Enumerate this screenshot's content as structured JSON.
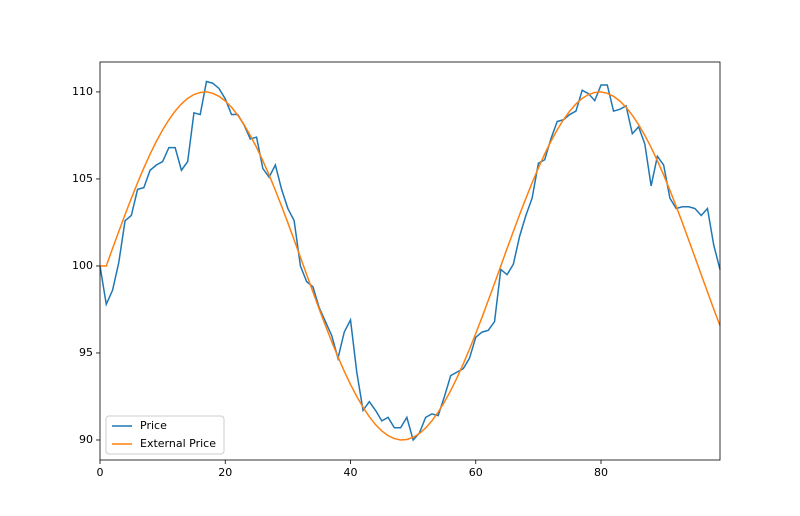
{
  "chart_data": {
    "type": "line",
    "x": [
      0,
      1,
      2,
      3,
      4,
      5,
      6,
      7,
      8,
      9,
      10,
      11,
      12,
      13,
      14,
      15,
      16,
      17,
      18,
      19,
      20,
      21,
      22,
      23,
      24,
      25,
      26,
      27,
      28,
      29,
      30,
      31,
      32,
      33,
      34,
      35,
      36,
      37,
      38,
      39,
      40,
      41,
      42,
      43,
      44,
      45,
      46,
      47,
      48,
      49,
      50,
      51,
      52,
      53,
      54,
      55,
      56,
      57,
      58,
      59,
      60,
      61,
      62,
      63,
      64,
      65,
      66,
      67,
      68,
      69,
      70,
      71,
      72,
      73,
      74,
      75,
      76,
      77,
      78,
      79,
      80,
      81,
      82,
      83,
      84,
      85,
      86,
      87,
      88,
      89,
      90,
      91,
      92,
      93,
      94,
      95,
      96,
      97,
      98,
      99
    ],
    "series": [
      {
        "name": "Price",
        "color": "#1f77b4",
        "values": [
          100,
          97.8,
          98.6,
          100.2,
          102.6,
          102.9,
          104.4,
          104.5,
          105.5,
          105.8,
          106.0,
          106.8,
          106.8,
          105.5,
          106.0,
          108.8,
          108.7,
          110.6,
          110.5,
          110.2,
          109.6,
          108.7,
          108.7,
          108.1,
          107.3,
          107.4,
          105.6,
          105.1,
          105.8,
          104.4,
          103.3,
          102.6,
          100.0,
          99.1,
          98.8,
          97.6,
          96.8,
          96.0,
          94.7,
          96.2,
          96.9,
          93.9,
          91.7,
          92.2,
          91.7,
          91.1,
          91.3,
          90.7,
          90.7,
          91.3,
          90.0,
          90.4,
          91.3,
          91.5,
          91.4,
          92.5,
          93.7,
          93.9,
          94.1,
          94.7,
          95.9,
          96.2,
          96.3,
          96.8,
          99.8,
          99.5,
          100.1,
          101.7,
          102.9,
          103.9,
          105.9,
          106.1,
          107.3,
          108.3,
          108.4,
          108.7,
          108.9,
          110.1,
          109.9,
          109.5,
          110.4,
          110.4,
          108.9,
          109.0,
          109.2,
          107.6,
          108.0,
          107.0,
          104.6,
          106.3,
          105.8,
          103.9,
          103.3,
          103.4,
          103.4,
          103.3,
          102.9,
          103.3,
          101.2,
          99.8
        ]
      },
      {
        "name": "External Price",
        "color": "#ff7f0e",
        "values": [
          100,
          100,
          101.0,
          101.98,
          102.95,
          103.88,
          104.78,
          105.63,
          106.43,
          107.16,
          107.82,
          108.4,
          108.9,
          109.31,
          109.63,
          109.85,
          109.97,
          110.0,
          109.92,
          109.75,
          109.48,
          109.12,
          108.66,
          108.12,
          107.5,
          106.81,
          106.05,
          105.23,
          104.35,
          103.43,
          102.48,
          101.49,
          100.5,
          99.5,
          98.51,
          97.52,
          96.57,
          95.65,
          94.77,
          93.95,
          93.19,
          92.5,
          91.88,
          91.34,
          90.88,
          90.52,
          90.25,
          90.08,
          90.0,
          90.03,
          90.15,
          90.37,
          90.69,
          91.1,
          91.6,
          92.18,
          92.84,
          93.57,
          94.37,
          95.22,
          96.12,
          97.05,
          98.02,
          99.0,
          100,
          101.0,
          101.98,
          102.95,
          103.88,
          104.78,
          105.63,
          106.43,
          107.16,
          107.82,
          108.4,
          108.9,
          109.31,
          109.63,
          109.85,
          109.97,
          110.0,
          109.92,
          109.75,
          109.48,
          109.12,
          108.66,
          108.12,
          107.5,
          106.81,
          106.05,
          105.23,
          104.35,
          103.43,
          102.48,
          101.49,
          100.5,
          99.5,
          98.51,
          97.52,
          96.57
        ]
      }
    ],
    "xlim": [
      0,
      99
    ],
    "xticks": [
      0,
      20,
      40,
      60,
      80
    ],
    "ylim": [
      88.85,
      111.72
    ],
    "yticks": [
      90,
      95,
      100,
      105,
      110
    ],
    "legend": "lower left"
  }
}
